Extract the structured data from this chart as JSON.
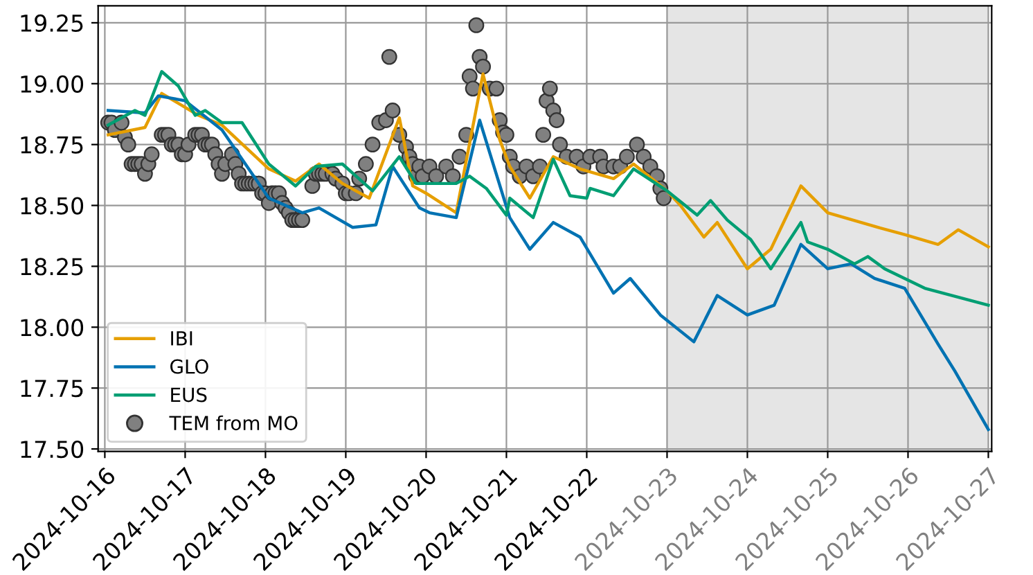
{
  "chart_data": {
    "type": "line",
    "xlim": [
      "2024-10-15T22:00",
      "2024-10-27T01:00"
    ],
    "xticks": [
      "2024-10-16",
      "2024-10-17",
      "2024-10-18",
      "2024-10-19",
      "2024-10-20",
      "2024-10-21",
      "2024-10-22",
      "2024-10-23",
      "2024-10-24",
      "2024-10-25",
      "2024-10-26",
      "2024-10-27"
    ],
    "ylim": [
      17.49,
      19.32
    ],
    "yticks": [
      {
        "value": 17.5,
        "label": "17.50"
      },
      {
        "value": 17.75,
        "label": "17.75"
      },
      {
        "value": 18.0,
        "label": "18.00"
      },
      {
        "value": 18.25,
        "label": "18.25"
      },
      {
        "value": 18.5,
        "label": "18.50"
      },
      {
        "value": 18.75,
        "label": "18.75"
      },
      {
        "value": 19.0,
        "label": "19.00"
      },
      {
        "value": 19.25,
        "label": "19.25"
      }
    ],
    "grid": true,
    "legend": "bottom left",
    "bands": [
      {
        "axis": "x",
        "from": "2024-10-23",
        "to": "2024-10-27",
        "color": "#e5e5e5"
      }
    ],
    "series": [
      {
        "name": "IBI",
        "color": "#e69f00",
        "x": [
          "2024-10-16T01:00",
          "2024-10-16T12:00",
          "2024-10-16T17:00",
          "2024-10-17T04:00",
          "2024-10-17T11:00",
          "2024-10-18T01:00",
          "2024-10-18T09:00",
          "2024-10-18T16:00",
          "2024-10-18T23:00",
          "2024-10-19T07:00",
          "2024-10-19T16:00",
          "2024-10-19T20:00",
          "2024-10-20T00:00",
          "2024-10-20T09:00",
          "2024-10-20T17:00",
          "2024-10-20T22:00",
          "2024-10-21T01:00",
          "2024-10-21T07:00",
          "2024-10-21T14:00",
          "2024-10-21T22:00",
          "2024-10-22T08:00",
          "2024-10-22T14:00",
          "2024-10-23T00:00",
          "2024-10-23T04:00",
          "2024-10-23T11:00",
          "2024-10-23T15:00",
          "2024-10-24T00:00",
          "2024-10-24T07:00",
          "2024-10-24T16:00",
          "2024-10-25T00:00",
          "2024-10-25T15:00",
          "2024-10-25T23:00",
          "2024-10-26T09:00",
          "2024-10-26T15:00",
          "2024-10-27T00:00"
        ],
        "values": [
          18.79,
          18.82,
          18.96,
          18.87,
          18.83,
          18.65,
          18.6,
          18.67,
          18.59,
          18.53,
          18.86,
          18.58,
          18.55,
          18.47,
          19.04,
          18.77,
          18.66,
          18.53,
          18.7,
          18.65,
          18.61,
          18.67,
          18.56,
          18.5,
          18.37,
          18.43,
          18.24,
          18.32,
          18.58,
          18.47,
          18.41,
          18.38,
          18.34,
          18.4,
          18.33
        ]
      },
      {
        "name": "GLO",
        "color": "#0072b2",
        "x": [
          "2024-10-16T01:00",
          "2024-10-16T12:00",
          "2024-10-16T16:00",
          "2024-10-17T00:00",
          "2024-10-17T11:00",
          "2024-10-17T18:00",
          "2024-10-18T01:00",
          "2024-10-18T11:00",
          "2024-10-18T16:00",
          "2024-10-19T02:00",
          "2024-10-19T09:00",
          "2024-10-19T14:00",
          "2024-10-19T22:00",
          "2024-10-20T01:00",
          "2024-10-20T09:00",
          "2024-10-20T16:00",
          "2024-10-21T01:00",
          "2024-10-21T07:00",
          "2024-10-21T14:00",
          "2024-10-21T22:00",
          "2024-10-22T08:00",
          "2024-10-22T13:00",
          "2024-10-22T22:00",
          "2024-10-23T08:00",
          "2024-10-23T15:00",
          "2024-10-24T00:00",
          "2024-10-24T08:00",
          "2024-10-24T16:00",
          "2024-10-25T00:00",
          "2024-10-25T07:00",
          "2024-10-25T14:00",
          "2024-10-25T23:00",
          "2024-10-26T09:00",
          "2024-10-26T14:00",
          "2024-10-27T00:00"
        ],
        "values": [
          18.89,
          18.88,
          18.95,
          18.93,
          18.81,
          18.67,
          18.53,
          18.47,
          18.49,
          18.41,
          18.42,
          18.66,
          18.49,
          18.47,
          18.45,
          18.85,
          18.45,
          18.32,
          18.43,
          18.37,
          18.14,
          18.2,
          18.05,
          17.94,
          18.13,
          18.05,
          18.09,
          18.34,
          18.24,
          18.26,
          18.2,
          18.16,
          17.93,
          17.82,
          17.58
        ]
      },
      {
        "name": "EUS",
        "color": "#009e73",
        "x": [
          "2024-10-16T01:00",
          "2024-10-16T09:00",
          "2024-10-16T12:00",
          "2024-10-16T17:00",
          "2024-10-16T22:00",
          "2024-10-17T03:00",
          "2024-10-17T06:00",
          "2024-10-17T11:00",
          "2024-10-17T17:00",
          "2024-10-18T01:00",
          "2024-10-18T09:00",
          "2024-10-18T15:00",
          "2024-10-18T23:00",
          "2024-10-19T08:00",
          "2024-10-19T16:00",
          "2024-10-19T21:00",
          "2024-10-20T09:00",
          "2024-10-20T13:00",
          "2024-10-20T18:00",
          "2024-10-21T00:00",
          "2024-10-21T01:00",
          "2024-10-21T08:00",
          "2024-10-21T14:00",
          "2024-10-21T19:00",
          "2024-10-22T00:00",
          "2024-10-22T01:00",
          "2024-10-22T08:00",
          "2024-10-22T14:00",
          "2024-10-23T00:00",
          "2024-10-23T09:00",
          "2024-10-23T13:00",
          "2024-10-23T18:00",
          "2024-10-24T01:00",
          "2024-10-24T07:00",
          "2024-10-24T16:00",
          "2024-10-24T18:00",
          "2024-10-25T00:00",
          "2024-10-25T08:00",
          "2024-10-25T12:00",
          "2024-10-25T17:00",
          "2024-10-26T05:00",
          "2024-10-27T00:00"
        ],
        "values": [
          18.83,
          18.89,
          18.87,
          19.05,
          18.99,
          18.87,
          18.89,
          18.84,
          18.84,
          18.67,
          18.58,
          18.66,
          18.67,
          18.56,
          18.7,
          18.59,
          18.59,
          18.62,
          18.57,
          18.46,
          18.53,
          18.45,
          18.69,
          18.54,
          18.53,
          18.57,
          18.54,
          18.65,
          18.56,
          18.46,
          18.52,
          18.44,
          18.36,
          18.24,
          18.43,
          18.35,
          18.32,
          18.26,
          18.29,
          18.24,
          18.16,
          18.09
        ]
      },
      {
        "name": "TEM from MO",
        "type": "scatter",
        "marker": "circle",
        "color": "#808080",
        "x": [
          "2024-10-16T01:00",
          "2024-10-16T02:00",
          "2024-10-16T03:00",
          "2024-10-16T05:00",
          "2024-10-16T06:00",
          "2024-10-16T07:00",
          "2024-10-16T08:00",
          "2024-10-16T09:00",
          "2024-10-16T10:00",
          "2024-10-16T11:00",
          "2024-10-16T12:00",
          "2024-10-16T13:00",
          "2024-10-16T14:00",
          "2024-10-16T17:00",
          "2024-10-16T18:00",
          "2024-10-16T19:00",
          "2024-10-16T20:00",
          "2024-10-16T21:00",
          "2024-10-16T22:00",
          "2024-10-16T23:00",
          "2024-10-17T00:00",
          "2024-10-17T01:00",
          "2024-10-17T03:00",
          "2024-10-17T04:00",
          "2024-10-17T05:00",
          "2024-10-17T06:00",
          "2024-10-17T07:00",
          "2024-10-17T08:00",
          "2024-10-17T09:00",
          "2024-10-17T10:00",
          "2024-10-17T11:00",
          "2024-10-17T12:00",
          "2024-10-17T14:00",
          "2024-10-17T15:00",
          "2024-10-17T16:00",
          "2024-10-17T17:00",
          "2024-10-17T18:00",
          "2024-10-17T19:00",
          "2024-10-17T20:00",
          "2024-10-17T21:00",
          "2024-10-17T22:00",
          "2024-10-17T23:00",
          "2024-10-18T00:00",
          "2024-10-18T01:00",
          "2024-10-18T02:00",
          "2024-10-18T03:00",
          "2024-10-18T04:00",
          "2024-10-18T05:00",
          "2024-10-18T06:00",
          "2024-10-18T07:00",
          "2024-10-18T08:00",
          "2024-10-18T09:00",
          "2024-10-18T10:00",
          "2024-10-18T11:00",
          "2024-10-18T14:00",
          "2024-10-18T15:00",
          "2024-10-18T16:00",
          "2024-10-18T17:00",
          "2024-10-18T18:00",
          "2024-10-18T20:00",
          "2024-10-18T21:00",
          "2024-10-18T23:00",
          "2024-10-19T00:00",
          "2024-10-19T01:00",
          "2024-10-19T03:00",
          "2024-10-19T04:00",
          "2024-10-19T06:00",
          "2024-10-19T08:00",
          "2024-10-19T10:00",
          "2024-10-19T12:00",
          "2024-10-19T13:00",
          "2024-10-19T14:00",
          "2024-10-19T16:00",
          "2024-10-19T18:00",
          "2024-10-19T19:00",
          "2024-10-19T20:00",
          "2024-10-19T21:00",
          "2024-10-19T22:00",
          "2024-10-19T23:00",
          "2024-10-20T01:00",
          "2024-10-20T03:00",
          "2024-10-20T06:00",
          "2024-10-20T08:00",
          "2024-10-20T10:00",
          "2024-10-20T12:00",
          "2024-10-20T13:00",
          "2024-10-20T14:00",
          "2024-10-20T15:00",
          "2024-10-20T16:00",
          "2024-10-20T17:00",
          "2024-10-20T19:00",
          "2024-10-20T21:00",
          "2024-10-20T22:00",
          "2024-10-20T23:00",
          "2024-10-21T00:00",
          "2024-10-21T01:00",
          "2024-10-21T02:00",
          "2024-10-21T04:00",
          "2024-10-21T06:00",
          "2024-10-21T08:00",
          "2024-10-21T10:00",
          "2024-10-21T11:00",
          "2024-10-21T12:00",
          "2024-10-21T13:00",
          "2024-10-21T14:00",
          "2024-10-21T15:00",
          "2024-10-21T16:00",
          "2024-10-21T18:00",
          "2024-10-21T21:00",
          "2024-10-21T23:00",
          "2024-10-22T01:00",
          "2024-10-22T04:00",
          "2024-10-22T05:00",
          "2024-10-22T08:00",
          "2024-10-22T10:00",
          "2024-10-22T12:00",
          "2024-10-22T15:00",
          "2024-10-22T17:00",
          "2024-10-22T19:00",
          "2024-10-22T21:00",
          "2024-10-22T22:00",
          "2024-10-22T23:00"
        ],
        "values": [
          18.84,
          18.84,
          18.81,
          18.84,
          18.78,
          18.75,
          18.67,
          18.67,
          18.67,
          18.67,
          18.63,
          18.67,
          18.71,
          18.79,
          18.79,
          18.79,
          18.75,
          18.75,
          18.75,
          18.71,
          18.71,
          18.75,
          18.79,
          18.79,
          18.79,
          18.75,
          18.75,
          18.75,
          18.71,
          18.67,
          18.63,
          18.67,
          18.71,
          18.67,
          18.63,
          18.59,
          18.59,
          18.59,
          18.59,
          18.59,
          18.59,
          18.55,
          18.55,
          18.51,
          18.55,
          18.55,
          18.55,
          18.51,
          18.49,
          18.47,
          18.44,
          18.44,
          18.44,
          18.44,
          18.58,
          18.63,
          18.63,
          18.63,
          18.63,
          18.63,
          18.61,
          18.59,
          18.55,
          18.55,
          18.55,
          18.61,
          18.67,
          18.75,
          18.84,
          18.85,
          19.11,
          18.89,
          18.79,
          18.74,
          18.7,
          18.67,
          18.62,
          18.66,
          18.62,
          18.66,
          18.62,
          18.66,
          18.62,
          18.7,
          18.79,
          19.03,
          18.98,
          19.24,
          19.11,
          19.07,
          18.98,
          18.98,
          18.85,
          18.8,
          18.79,
          18.7,
          18.66,
          18.62,
          18.66,
          18.62,
          18.66,
          18.79,
          18.93,
          18.98,
          18.89,
          18.85,
          18.75,
          18.7,
          18.7,
          18.66,
          18.7,
          18.7,
          18.66,
          18.66,
          18.66,
          18.7,
          18.75,
          18.7,
          18.66,
          18.62,
          18.57,
          18.53
        ]
      }
    ]
  }
}
